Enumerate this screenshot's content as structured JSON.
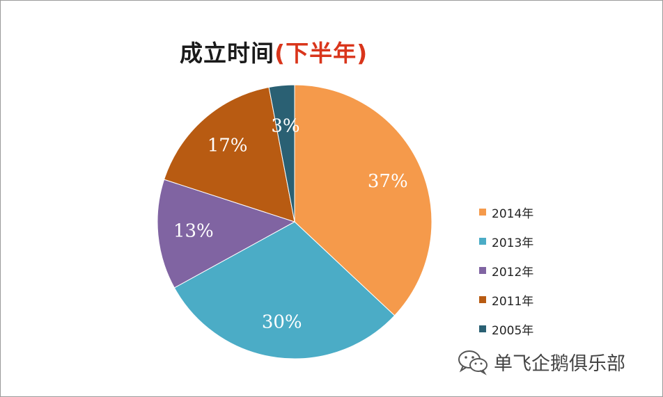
{
  "chart_data": {
    "type": "pie",
    "title": "成立时间",
    "subtitle": "(下半年)",
    "categories": [
      "2014年",
      "2013年",
      "2012年",
      "2011年",
      "2005年"
    ],
    "values": [
      37,
      30,
      13,
      17,
      3
    ],
    "labels": [
      "37%",
      "30%",
      "13%",
      "17%",
      "3%"
    ],
    "colors": [
      "#f59a4b",
      "#4bacc6",
      "#8064a2",
      "#b85b12",
      "#2a6073"
    ],
    "legend_position": "right",
    "start_angle": "12 o'clock, clockwise"
  },
  "watermark": {
    "text": "单飞企鹅俱乐部",
    "icon": "wechat-icon"
  }
}
